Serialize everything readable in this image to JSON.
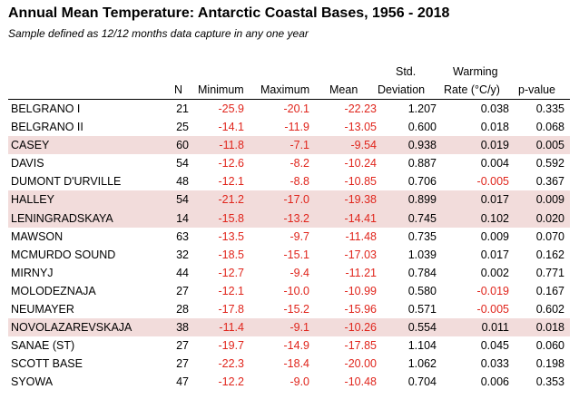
{
  "title": "Annual Mean Temperature: Antarctic Coastal Bases, 1956 - 2018",
  "subtitle": "Sample defined as 12/12 months data capture in any one year",
  "headers": {
    "n": "N",
    "minimum": "Minimum",
    "maximum": "Maximum",
    "mean": "Mean",
    "std_top": "Std.",
    "std_bottom": "Deviation",
    "rate_top": "Warming",
    "rate_bottom": "Rate (°C/y)",
    "p": "p-value"
  },
  "colors": {
    "negative_text": "#e0251c",
    "highlight_row": "#f2dcdb"
  },
  "rows": [
    {
      "name": "BELGRANO I",
      "n": "21",
      "min": "-25.9",
      "max": "-20.1",
      "mean": "-22.23",
      "sd": "1.207",
      "rate": "0.038",
      "p": "0.335",
      "hl": false,
      "rate_neg": false
    },
    {
      "name": "BELGRANO II",
      "n": "25",
      "min": "-14.1",
      "max": "-11.9",
      "mean": "-13.05",
      "sd": "0.600",
      "rate": "0.018",
      "p": "0.068",
      "hl": false,
      "rate_neg": false
    },
    {
      "name": "CASEY",
      "n": "60",
      "min": "-11.8",
      "max": "-7.1",
      "mean": "-9.54",
      "sd": "0.938",
      "rate": "0.019",
      "p": "0.005",
      "hl": true,
      "rate_neg": false
    },
    {
      "name": "DAVIS",
      "n": "54",
      "min": "-12.6",
      "max": "-8.2",
      "mean": "-10.24",
      "sd": "0.887",
      "rate": "0.004",
      "p": "0.592",
      "hl": false,
      "rate_neg": false
    },
    {
      "name": "DUMONT D'URVILLE",
      "n": "48",
      "min": "-12.1",
      "max": "-8.8",
      "mean": "-10.85",
      "sd": "0.706",
      "rate": "-0.005",
      "p": "0.367",
      "hl": false,
      "rate_neg": true
    },
    {
      "name": "HALLEY",
      "n": "54",
      "min": "-21.2",
      "max": "-17.0",
      "mean": "-19.38",
      "sd": "0.899",
      "rate": "0.017",
      "p": "0.009",
      "hl": true,
      "rate_neg": false
    },
    {
      "name": "LENINGRADSKAYA",
      "n": "14",
      "min": "-15.8",
      "max": "-13.2",
      "mean": "-14.41",
      "sd": "0.745",
      "rate": "0.102",
      "p": "0.020",
      "hl": true,
      "rate_neg": false
    },
    {
      "name": "MAWSON",
      "n": "63",
      "min": "-13.5",
      "max": "-9.7",
      "mean": "-11.48",
      "sd": "0.735",
      "rate": "0.009",
      "p": "0.070",
      "hl": false,
      "rate_neg": false
    },
    {
      "name": "MCMURDO SOUND",
      "n": "32",
      "min": "-18.5",
      "max": "-15.1",
      "mean": "-17.03",
      "sd": "1.039",
      "rate": "0.017",
      "p": "0.162",
      "hl": false,
      "rate_neg": false
    },
    {
      "name": "MIRNYJ",
      "n": "44",
      "min": "-12.7",
      "max": "-9.4",
      "mean": "-11.21",
      "sd": "0.784",
      "rate": "0.002",
      "p": "0.771",
      "hl": false,
      "rate_neg": false
    },
    {
      "name": "MOLODEZNAJA",
      "n": "27",
      "min": "-12.1",
      "max": "-10.0",
      "mean": "-10.99",
      "sd": "0.580",
      "rate": "-0.019",
      "p": "0.167",
      "hl": false,
      "rate_neg": true
    },
    {
      "name": "NEUMAYER",
      "n": "28",
      "min": "-17.8",
      "max": "-15.2",
      "mean": "-15.96",
      "sd": "0.571",
      "rate": "-0.005",
      "p": "0.602",
      "hl": false,
      "rate_neg": true
    },
    {
      "name": "NOVOLAZAREVSKAJA",
      "n": "38",
      "min": "-11.4",
      "max": "-9.1",
      "mean": "-10.26",
      "sd": "0.554",
      "rate": "0.011",
      "p": "0.018",
      "hl": true,
      "rate_neg": false
    },
    {
      "name": "SANAE (ST)",
      "n": "27",
      "min": "-19.7",
      "max": "-14.9",
      "mean": "-17.85",
      "sd": "1.104",
      "rate": "0.045",
      "p": "0.060",
      "hl": false,
      "rate_neg": false
    },
    {
      "name": "SCOTT BASE",
      "n": "27",
      "min": "-22.3",
      "max": "-18.4",
      "mean": "-20.00",
      "sd": "1.062",
      "rate": "0.033",
      "p": "0.198",
      "hl": false,
      "rate_neg": false
    },
    {
      "name": "SYOWA",
      "n": "47",
      "min": "-12.2",
      "max": "-9.0",
      "mean": "-10.48",
      "sd": "0.704",
      "rate": "0.006",
      "p": "0.353",
      "hl": false,
      "rate_neg": false
    }
  ]
}
